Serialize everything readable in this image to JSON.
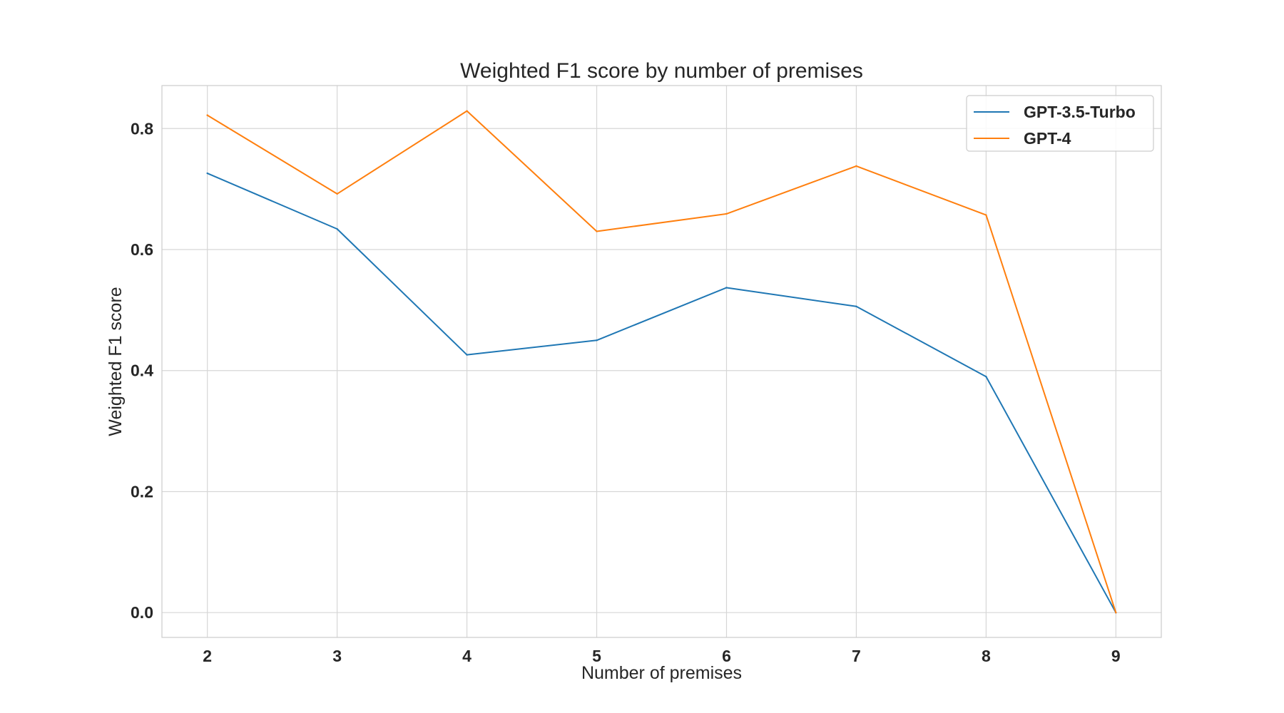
{
  "chart_data": {
    "type": "line",
    "title": "Weighted F1 score by number of premises",
    "xlabel": "Number of premises",
    "ylabel": "Weighted F1 score",
    "x": [
      2,
      3,
      4,
      5,
      6,
      7,
      8,
      9
    ],
    "x_tick_labels": [
      "2",
      "3",
      "4",
      "5",
      "6",
      "7",
      "8",
      "9"
    ],
    "y_ticks": [
      0.0,
      0.2,
      0.4,
      0.6,
      0.8
    ],
    "y_tick_labels": [
      "0.0",
      "0.2",
      "0.4",
      "0.6",
      "0.8"
    ],
    "xlim": [
      1.65,
      9.35
    ],
    "ylim": [
      -0.041,
      0.871
    ],
    "grid": true,
    "legend_position": "top-right",
    "series": [
      {
        "name": "GPT-3.5-Turbo",
        "color": "#1f77b4",
        "values": [
          0.726,
          0.634,
          0.426,
          0.45,
          0.537,
          0.506,
          0.39,
          0.0
        ]
      },
      {
        "name": "GPT-4",
        "color": "#ff7f0e",
        "values": [
          0.822,
          0.692,
          0.829,
          0.63,
          0.659,
          0.738,
          0.657,
          0.0
        ]
      }
    ]
  }
}
